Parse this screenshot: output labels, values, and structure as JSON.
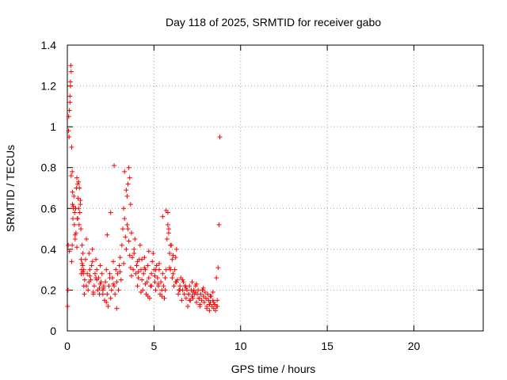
{
  "chart_data": {
    "type": "scatter",
    "title": "Day 118 of 2025, SRMTID for receiver gabo",
    "xlabel": "GPS time / hours",
    "ylabel": "SRMTID / TECUs",
    "xlim": [
      0,
      24
    ],
    "ylim": [
      0,
      1.4
    ],
    "x_ticks": [
      0,
      5,
      10,
      15,
      20
    ],
    "x_tick_labels": [
      "0",
      "5",
      "10",
      "15",
      "20"
    ],
    "y_ticks": [
      0,
      0.2,
      0.4,
      0.6,
      0.8,
      1.0,
      1.2,
      1.4
    ],
    "y_tick_labels": [
      "0",
      "0.2",
      "0.4",
      "0.6",
      "0.8",
      "1",
      "1.2",
      "1.4"
    ],
    "grid": true,
    "marker": "+",
    "colors": {
      "marker": "#ff0000",
      "grid": "#a0a0a0",
      "axis": "#000000"
    },
    "series": [
      {
        "name": "SRMTID",
        "x": [
          0.02,
          0.04,
          0.05,
          0.07,
          0.08,
          0.1,
          0.12,
          0.15,
          0.18,
          0.2,
          0.22,
          0.25,
          0.28,
          0.3,
          0.32,
          0.35,
          0.38,
          0.4,
          0.42,
          0.45,
          0.48,
          0.5,
          0.52,
          0.55,
          0.58,
          0.6,
          0.62,
          0.65,
          0.68,
          0.7,
          0.72,
          0.75,
          0.78,
          0.8,
          0.82,
          0.85,
          0.88,
          0.9,
          0.92,
          0.95,
          0.98,
          1.0,
          1.05,
          1.1,
          1.15,
          1.2,
          1.25,
          1.3,
          1.35,
          1.4,
          1.45,
          1.5,
          1.55,
          1.6,
          1.65,
          1.7,
          1.75,
          1.8,
          1.85,
          1.9,
          1.95,
          2.0,
          2.05,
          2.1,
          2.15,
          2.2,
          2.25,
          2.3,
          2.35,
          2.4,
          2.45,
          2.5,
          2.55,
          2.6,
          2.65,
          2.7,
          2.75,
          2.8,
          2.85,
          2.9,
          2.95,
          3.0,
          3.05,
          3.1,
          3.15,
          3.2,
          3.25,
          3.3,
          3.35,
          3.4,
          3.45,
          3.5,
          3.55,
          3.6,
          3.65,
          3.7,
          3.75,
          3.8,
          3.85,
          3.9,
          3.95,
          4.0,
          4.05,
          4.1,
          4.15,
          4.2,
          4.25,
          4.3,
          4.35,
          4.4,
          4.45,
          4.5,
          4.55,
          4.6,
          4.65,
          4.7,
          4.75,
          4.8,
          4.85,
          4.9,
          4.95,
          5.0,
          5.05,
          5.1,
          5.15,
          5.2,
          5.25,
          5.3,
          5.35,
          5.4,
          5.45,
          5.5,
          5.55,
          5.6,
          5.65,
          5.7,
          5.75,
          5.8,
          5.85,
          5.9,
          5.95,
          6.0,
          6.05,
          6.1,
          6.15,
          6.2,
          6.25,
          6.3,
          6.35,
          6.4,
          6.45,
          6.5,
          6.55,
          6.6,
          6.65,
          6.7,
          6.75,
          6.8,
          6.85,
          6.9,
          6.95,
          7.0,
          7.05,
          7.1,
          7.15,
          7.2,
          7.25,
          7.3,
          7.35,
          7.4,
          7.45,
          7.5,
          7.55,
          7.6,
          7.65,
          7.7,
          7.75,
          7.8,
          7.85,
          7.9,
          7.95,
          8.0,
          8.05,
          8.1,
          8.15,
          8.2,
          8.25,
          8.3,
          8.35,
          8.4,
          8.45,
          8.5,
          8.55,
          8.6,
          8.65,
          8.7,
          8.75,
          8.8,
          0.15,
          0.18,
          0.22,
          0.25,
          0.28,
          0.3,
          0.35,
          0.6,
          0.65,
          0.75,
          0.8,
          0.85,
          0.9,
          1.1,
          1.3,
          1.5,
          1.7,
          1.9,
          2.1,
          2.3,
          2.5,
          2.7,
          3.3,
          3.4,
          3.45,
          3.5,
          3.55,
          3.6,
          3.65,
          3.7,
          4.1,
          4.3,
          4.5,
          4.7,
          5.1,
          5.3,
          5.5,
          5.7,
          5.8,
          5.85,
          5.9,
          5.95,
          6.1,
          6.3,
          6.5,
          6.8,
          7.0,
          7.2,
          7.4,
          7.6,
          7.8,
          8.0,
          8.2,
          8.4,
          8.6,
          0.12,
          0.45,
          0.55,
          0.95,
          1.25,
          1.45,
          1.65,
          1.85,
          2.05,
          2.25,
          2.45,
          2.65,
          2.85,
          3.05,
          3.25,
          3.85,
          4.05,
          4.25,
          4.45,
          4.65,
          4.85,
          5.05,
          5.25,
          5.45,
          5.65,
          6.05,
          6.25,
          6.45,
          6.65,
          6.85,
          7.05,
          7.25,
          7.45,
          7.65,
          7.85,
          8.05,
          8.25,
          8.45,
          8.65
        ],
        "y": [
          0.12,
          0.2,
          0.42,
          0.98,
          1.05,
          0.95,
          1.08,
          1.12,
          1.22,
          1.3,
          1.27,
          0.9,
          0.78,
          0.62,
          0.55,
          0.6,
          0.66,
          0.52,
          0.58,
          0.45,
          0.6,
          0.48,
          0.7,
          0.75,
          0.55,
          0.72,
          0.65,
          0.6,
          0.52,
          0.7,
          0.58,
          0.62,
          0.5,
          0.35,
          0.3,
          0.42,
          0.32,
          0.38,
          0.28,
          0.22,
          0.18,
          0.25,
          0.35,
          0.45,
          0.28,
          0.2,
          0.38,
          0.3,
          0.25,
          0.32,
          0.4,
          0.18,
          0.22,
          0.28,
          0.35,
          0.3,
          0.2,
          0.26,
          0.18,
          0.32,
          0.24,
          0.28,
          0.2,
          0.22,
          0.15,
          0.24,
          0.3,
          0.18,
          0.12,
          0.22,
          0.28,
          0.16,
          0.2,
          0.26,
          0.34,
          0.22,
          0.18,
          0.3,
          0.24,
          0.28,
          0.2,
          0.32,
          0.36,
          0.25,
          0.42,
          0.5,
          0.6,
          0.55,
          0.46,
          0.4,
          0.52,
          0.72,
          0.8,
          0.75,
          0.62,
          0.48,
          0.36,
          0.3,
          0.38,
          0.45,
          0.28,
          0.32,
          0.22,
          0.26,
          0.35,
          0.42,
          0.3,
          0.25,
          0.2,
          0.28,
          0.36,
          0.3,
          0.18,
          0.24,
          0.32,
          0.26,
          0.16,
          0.22,
          0.28,
          0.34,
          0.38,
          0.3,
          0.24,
          0.2,
          0.32,
          0.26,
          0.22,
          0.3,
          0.18,
          0.24,
          0.2,
          0.28,
          0.22,
          0.16,
          0.26,
          0.3,
          0.45,
          0.58,
          0.5,
          0.38,
          0.3,
          0.42,
          0.35,
          0.28,
          0.22,
          0.3,
          0.36,
          0.4,
          0.25,
          0.18,
          0.2,
          0.22,
          0.26,
          0.15,
          0.2,
          0.24,
          0.18,
          0.22,
          0.16,
          0.2,
          0.12,
          0.18,
          0.22,
          0.15,
          0.2,
          0.24,
          0.16,
          0.2,
          0.18,
          0.22,
          0.14,
          0.18,
          0.2,
          0.16,
          0.12,
          0.18,
          0.15,
          0.2,
          0.17,
          0.14,
          0.19,
          0.16,
          0.12,
          0.18,
          0.15,
          0.1,
          0.14,
          0.17,
          0.12,
          0.15,
          0.11,
          0.13,
          0.1,
          0.12,
          0.15,
          0.31,
          0.52,
          0.95,
          1.15,
          1.2,
          0.76,
          0.34,
          0.42,
          0.68,
          0.61,
          0.55,
          0.73,
          0.64,
          0.28,
          0.33,
          0.29,
          0.22,
          0.27,
          0.19,
          0.25,
          0.23,
          0.21,
          0.47,
          0.58,
          0.81,
          0.78,
          0.69,
          0.66,
          0.5,
          0.44,
          0.37,
          0.31,
          0.27,
          0.29,
          0.35,
          0.23,
          0.39,
          0.3,
          0.33,
          0.56,
          0.59,
          0.52,
          0.48,
          0.31,
          0.42,
          0.37,
          0.24,
          0.2,
          0.22,
          0.18,
          0.17,
          0.19,
          0.16,
          0.2,
          0.16,
          0.13,
          0.19,
          0.26,
          0.39,
          0.47,
          0.41,
          0.3,
          0.24,
          0.34,
          0.26,
          0.21,
          0.18,
          0.14,
          0.26,
          0.23,
          0.11,
          0.29,
          0.33,
          0.4,
          0.34,
          0.19,
          0.31,
          0.17,
          0.22,
          0.27,
          0.23,
          0.17,
          0.2,
          0.26,
          0.24,
          0.2,
          0.25,
          0.21,
          0.15,
          0.19,
          0.23,
          0.13,
          0.21,
          0.11,
          0.17,
          0.14,
          0.12
        ]
      }
    ]
  }
}
